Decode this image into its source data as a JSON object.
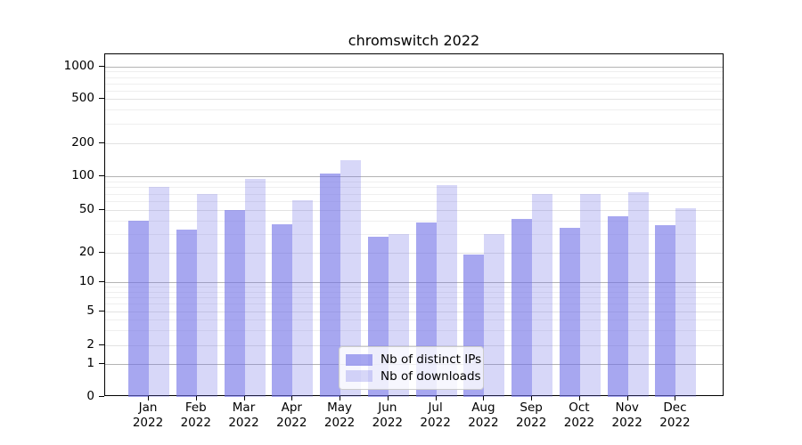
{
  "chart_data": {
    "type": "bar",
    "title": "chromswitch 2022",
    "categories": [
      "Jan",
      "Feb",
      "Mar",
      "Apr",
      "May",
      "Jun",
      "Jul",
      "Aug",
      "Sep",
      "Oct",
      "Nov",
      "Dec"
    ],
    "category_year": "2022",
    "series": [
      {
        "name": "Nb of distinct IPs",
        "values": [
          40,
          33,
          50,
          37,
          105,
          28,
          38,
          19,
          41,
          34,
          44,
          36
        ],
        "color": "rgba(113,113,230,0.62)"
      },
      {
        "name": "Nb of downloads",
        "values": [
          80,
          69,
          95,
          61,
          140,
          30,
          84,
          30,
          69,
          69,
          72,
          52
        ],
        "color": "rgba(113,113,230,0.28)"
      }
    ],
    "accent_color": "#7171e6",
    "yscale": "symlog",
    "yticks": [
      0,
      1,
      2,
      5,
      10,
      20,
      50,
      100,
      200,
      500,
      1000
    ],
    "ylim": [
      0,
      1300
    ],
    "xlabel": "",
    "ylabel": "",
    "grid": true,
    "legend_position": "lower center"
  }
}
